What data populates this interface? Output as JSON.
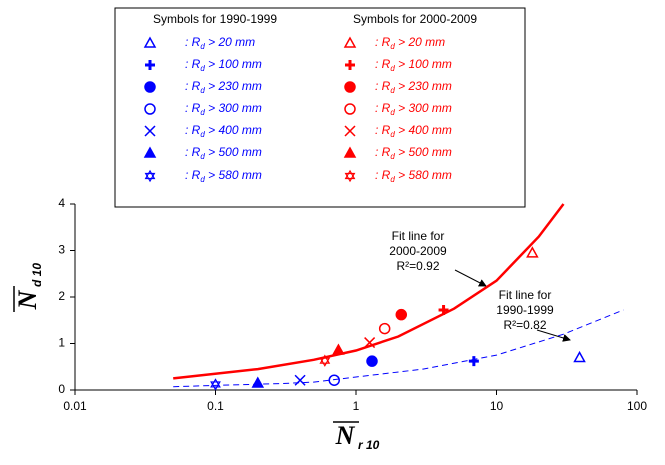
{
  "chart_data": {
    "type": "scatter",
    "xlabel": {
      "symbol": "N",
      "subscript": "r 10"
    },
    "ylabel": {
      "symbol": "N",
      "subscript": "d 10"
    },
    "xscale": "log",
    "xlim": [
      0.01,
      100
    ],
    "xticks": [
      0.01,
      0.1,
      1,
      10,
      100
    ],
    "ylim": [
      0,
      4
    ],
    "yticks": [
      0,
      1,
      2,
      3,
      4
    ],
    "series": [
      {
        "name": "Symbols for 1990-1999",
        "color": "#0000ff",
        "markers": [
          "triangle-open",
          "plus",
          "circle",
          "circle-open",
          "x",
          "triangle",
          "star-open"
        ],
        "labels": [
          [
            ": R",
            "d",
            " > 20 mm"
          ],
          [
            ": R",
            "d",
            " > 100 mm"
          ],
          [
            ": R",
            "d",
            " > 230 mm"
          ],
          [
            ": R",
            "d",
            " > 300 mm"
          ],
          [
            ": R",
            "d",
            " > 400 mm"
          ],
          [
            ": R",
            "d",
            " > 500 mm"
          ],
          [
            ": R",
            "d",
            " > 580 mm"
          ]
        ],
        "x": [
          39,
          6.9,
          1.3,
          0.7,
          0.4,
          0.2,
          0.1
        ],
        "values": [
          0.7,
          0.62,
          0.62,
          0.21,
          0.21,
          0.15,
          0.12
        ]
      },
      {
        "name": "Symbols for 2000-2009",
        "color": "#ff0000",
        "markers": [
          "triangle-open",
          "plus",
          "circle",
          "circle-open",
          "x",
          "triangle",
          "star-open"
        ],
        "labels": [
          [
            ": R",
            "d",
            " > 20 mm"
          ],
          [
            ": R",
            "d",
            " > 100 mm"
          ],
          [
            ": R",
            "d",
            " > 230 mm"
          ],
          [
            ": R",
            "d",
            " > 300 mm"
          ],
          [
            ": R",
            "d",
            " > 400 mm"
          ],
          [
            ": R",
            "d",
            " > 500 mm"
          ],
          [
            ": R",
            "d",
            " > 580 mm"
          ]
        ],
        "x": [
          18,
          4.2,
          2.1,
          1.6,
          1.25,
          0.75,
          0.6
        ],
        "values": [
          2.95,
          1.72,
          1.62,
          1.32,
          1.02,
          0.86,
          0.63
        ]
      }
    ],
    "fit_lines": [
      {
        "color": "#ff0000",
        "style": "solid",
        "x": [
          0.05,
          0.2,
          0.5,
          1,
          2,
          5,
          10,
          20,
          30
        ],
        "values": [
          0.25,
          0.45,
          0.65,
          0.85,
          1.15,
          1.75,
          2.35,
          3.3,
          4
        ]
      },
      {
        "color": "#0000ff",
        "style": "dashed",
        "x": [
          0.05,
          0.1,
          0.3,
          0.5,
          1,
          3,
          10,
          30,
          80
        ],
        "values": [
          0.07,
          0.1,
          0.14,
          0.17,
          0.28,
          0.45,
          0.75,
          1.2,
          1.72
        ]
      }
    ],
    "annotations": [
      {
        "lines": [
          "Fit line for",
          "2000-2009",
          "R²=0.92"
        ]
      },
      {
        "lines": [
          "Fit line for",
          "1990-1999",
          "R²=0.82"
        ]
      }
    ]
  }
}
